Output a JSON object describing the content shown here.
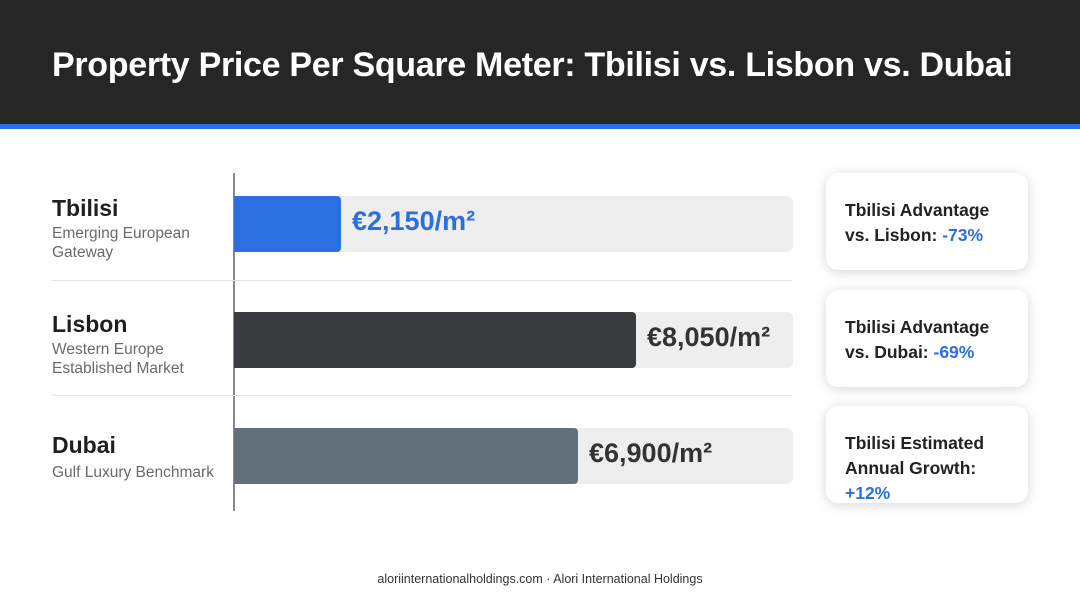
{
  "title": "Property Price Per Square Meter: Tbilisi vs. Lisbon vs. Dubai",
  "chart_data": {
    "type": "bar",
    "orientation": "horizontal",
    "categories": [
      "Tbilisi",
      "Lisbon",
      "Dubai"
    ],
    "subtitles": [
      "Emerging European Gateway",
      "Western Europe Established Market",
      "Gulf Luxury Benchmark"
    ],
    "values": [
      2150,
      8050,
      6900
    ],
    "value_labels": [
      "€2,150/m²",
      "€8,050/m²",
      "€6,900/m²"
    ],
    "unit": "€/m²",
    "xlim": [
      0,
      11200
    ],
    "colors": [
      "#2b6fe0",
      "#3a3b3e",
      "#63707c"
    ],
    "label_colors": [
      "#2b6fe0",
      "#333333",
      "#333333"
    ],
    "grid": false,
    "legend": "none"
  },
  "cards": [
    {
      "line1": "Tbilisi Advantage",
      "line2_prefix": "vs. Lisbon: ",
      "highlight": "-73%"
    },
    {
      "line1": "Tbilisi Advantage",
      "line2_prefix": "vs. Dubai: ",
      "highlight": "-69%"
    },
    {
      "line1": "Tbilisi Estimated",
      "line2_prefix": "Annual Growth: ",
      "highlight": "+12%"
    }
  ],
  "footer": "aloriinternationalholdings.com · Alori International Holdings"
}
